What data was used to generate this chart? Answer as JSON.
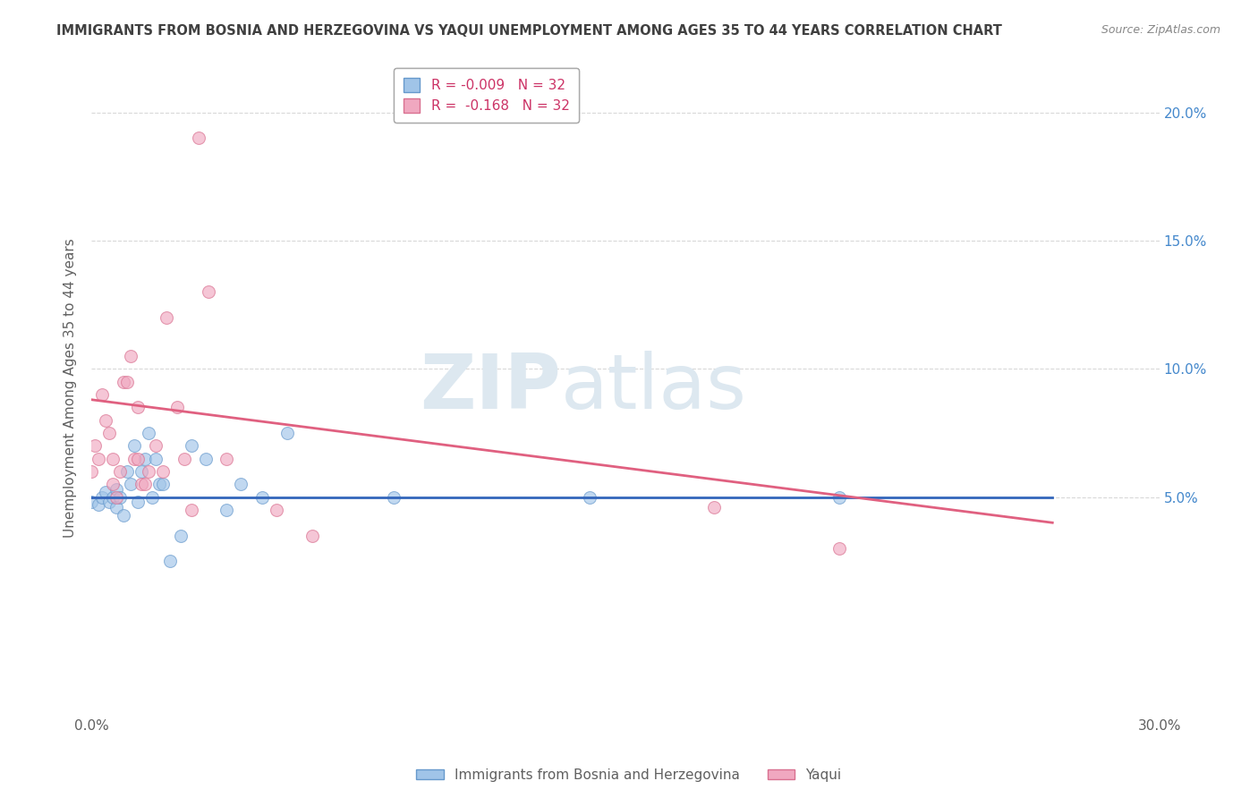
{
  "title": "IMMIGRANTS FROM BOSNIA AND HERZEGOVINA VS YAQUI UNEMPLOYMENT AMONG AGES 35 TO 44 YEARS CORRELATION CHART",
  "source": "Source: ZipAtlas.com",
  "ylabel": "Unemployment Among Ages 35 to 44 years",
  "xlim": [
    0.0,
    0.3
  ],
  "ylim": [
    -0.035,
    0.22
  ],
  "x_ticks": [
    0.0,
    0.05,
    0.1,
    0.15,
    0.2,
    0.25,
    0.3
  ],
  "x_tick_labels": [
    "0.0%",
    "",
    "",
    "",
    "",
    "",
    "30.0%"
  ],
  "y_ticks": [
    0.0,
    0.05,
    0.1,
    0.15,
    0.2
  ],
  "y_tick_labels_right": [
    "",
    "5.0%",
    "10.0%",
    "15.0%",
    "20.0%"
  ],
  "bosnia_scatter": {
    "x": [
      0.0,
      0.002,
      0.003,
      0.004,
      0.005,
      0.006,
      0.007,
      0.007,
      0.008,
      0.009,
      0.01,
      0.011,
      0.012,
      0.013,
      0.014,
      0.015,
      0.016,
      0.017,
      0.018,
      0.019,
      0.02,
      0.022,
      0.025,
      0.028,
      0.032,
      0.038,
      0.042,
      0.048,
      0.055,
      0.085,
      0.14,
      0.21
    ],
    "y": [
      0.048,
      0.047,
      0.05,
      0.052,
      0.048,
      0.05,
      0.046,
      0.053,
      0.05,
      0.043,
      0.06,
      0.055,
      0.07,
      0.048,
      0.06,
      0.065,
      0.075,
      0.05,
      0.065,
      0.055,
      0.055,
      0.025,
      0.035,
      0.07,
      0.065,
      0.045,
      0.055,
      0.05,
      0.075,
      0.05,
      0.05,
      0.05
    ],
    "color": "#a0c4e8",
    "edge_color": "#6699cc",
    "size": 100,
    "alpha": 0.65
  },
  "yaqui_scatter": {
    "x": [
      0.0,
      0.001,
      0.002,
      0.003,
      0.004,
      0.005,
      0.006,
      0.006,
      0.007,
      0.008,
      0.009,
      0.01,
      0.011,
      0.012,
      0.013,
      0.013,
      0.014,
      0.015,
      0.016,
      0.018,
      0.02,
      0.021,
      0.024,
      0.026,
      0.028,
      0.03,
      0.033,
      0.038,
      0.052,
      0.062,
      0.175,
      0.21
    ],
    "y": [
      0.06,
      0.07,
      0.065,
      0.09,
      0.08,
      0.075,
      0.055,
      0.065,
      0.05,
      0.06,
      0.095,
      0.095,
      0.105,
      0.065,
      0.065,
      0.085,
      0.055,
      0.055,
      0.06,
      0.07,
      0.06,
      0.12,
      0.085,
      0.065,
      0.045,
      0.19,
      0.13,
      0.065,
      0.045,
      0.035,
      0.046,
      0.03
    ],
    "color": "#f0a8c0",
    "edge_color": "#d97090",
    "size": 100,
    "alpha": 0.65
  },
  "bosnia_line": {
    "x": [
      0.0,
      0.27
    ],
    "y": [
      0.05,
      0.05
    ],
    "color": "#3366bb",
    "linewidth": 2.0,
    "linestyle": "-"
  },
  "yaqui_line": {
    "x": [
      0.0,
      0.27
    ],
    "y": [
      0.088,
      0.04
    ],
    "color": "#e06080",
    "linewidth": 2.0,
    "linestyle": "-"
  },
  "watermark_zip": "ZIP",
  "watermark_atlas": "atlas",
  "watermark_color": "#dde8f0",
  "background_color": "#ffffff",
  "grid_color": "#d8d8d8",
  "title_color": "#404040",
  "axis_color": "#606060",
  "right_axis_color": "#4488cc"
}
